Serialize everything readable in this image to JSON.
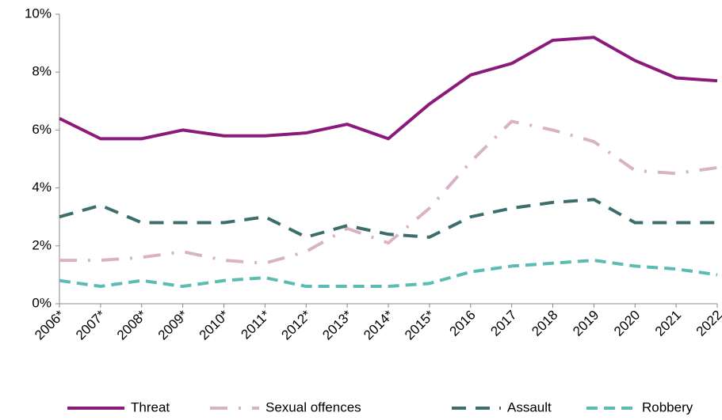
{
  "chart_data": {
    "type": "line",
    "categories": [
      "2006*",
      "2007*",
      "2008*",
      "2009*",
      "2010*",
      "2011*",
      "2012*",
      "2013*",
      "2014*",
      "2015*",
      "2016",
      "2017",
      "2018",
      "2019",
      "2020",
      "2021",
      "2022"
    ],
    "series": [
      {
        "name": "Threat",
        "color": "#8b1a7c",
        "values": [
          6.4,
          5.7,
          5.7,
          6.0,
          5.8,
          5.8,
          5.9,
          6.2,
          5.7,
          6.9,
          7.9,
          8.3,
          9.1,
          9.2,
          8.4,
          7.8,
          7.7
        ]
      },
      {
        "name": "Sexual offences",
        "color": "#d9b2c6",
        "values": [
          1.5,
          1.5,
          1.6,
          1.8,
          1.5,
          1.4,
          1.8,
          2.6,
          2.1,
          3.3,
          4.9,
          6.3,
          6.0,
          5.6,
          4.6,
          4.5,
          4.7
        ]
      },
      {
        "name": "Assault",
        "color": "#3d6e6e",
        "values": [
          3.0,
          3.4,
          2.8,
          2.8,
          2.8,
          3.0,
          2.3,
          2.7,
          2.4,
          2.3,
          3.0,
          3.3,
          3.5,
          3.6,
          2.8,
          2.8,
          2.8
        ]
      },
      {
        "name": "Robbery",
        "color": "#5bbcb4",
        "values": [
          0.8,
          0.6,
          0.8,
          0.6,
          0.8,
          0.9,
          0.6,
          0.6,
          0.6,
          0.7,
          1.1,
          1.3,
          1.4,
          1.5,
          1.3,
          1.2,
          1.0
        ]
      }
    ],
    "ylim": [
      0,
      10
    ],
    "yticks": [
      {
        "value": 0,
        "label": "0%"
      },
      {
        "value": 2,
        "label": "2%"
      },
      {
        "value": 4,
        "label": "4%"
      },
      {
        "value": 6,
        "label": "6%"
      },
      {
        "value": 8,
        "label": "8%"
      },
      {
        "value": 10,
        "label": "10%"
      }
    ],
    "grid": false,
    "legend": "bottom"
  }
}
